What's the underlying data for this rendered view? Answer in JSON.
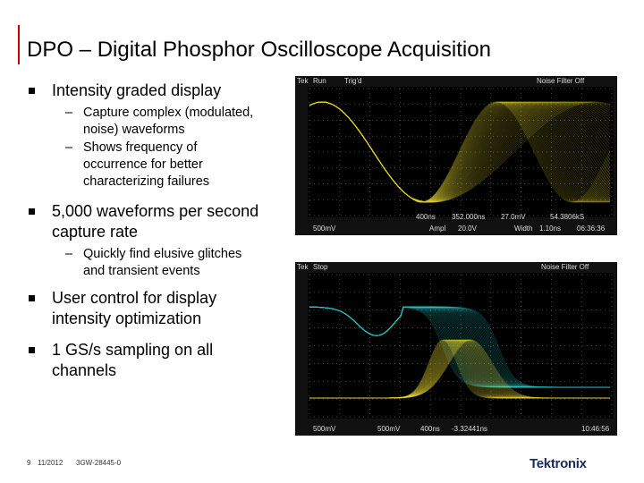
{
  "slide": {
    "title": "DPO – Digital Phosphor Oscilloscope Acquisition",
    "bullets": [
      {
        "text": "Intensity graded display",
        "sub": [
          "Capture complex (modulated, noise) waveforms",
          "Shows frequency of occurrence for better characterizing failures"
        ]
      },
      {
        "text": "5,000 waveforms per second capture rate",
        "sub": [
          "Quickly find elusive glitches and transient events"
        ]
      },
      {
        "text": "User control for display intensity optimization",
        "sub": []
      },
      {
        "text": "1 GS/s sampling on all channels",
        "sub": []
      }
    ]
  },
  "scope1": {
    "status": [
      "Tek",
      "Run",
      "Trig'd",
      "Noise Filter Off"
    ],
    "readouts": [
      "400ns",
      "352.000ns",
      "27.0mV",
      "54.3806kS",
      "500mV",
      "Ampl",
      "20.0V",
      "Width",
      "1.10ns",
      "06:36:36"
    ]
  },
  "scope2": {
    "status": [
      "Tek",
      "Stop",
      "Noise Filter Off"
    ],
    "readouts": [
      "500mV",
      "500mV",
      "400ns",
      "-3.32441ns",
      "10:46:56"
    ]
  },
  "footer": {
    "page": "9",
    "date": "11/2012",
    "doc": "3GW-28445-0",
    "logo": "Tektronix"
  }
}
